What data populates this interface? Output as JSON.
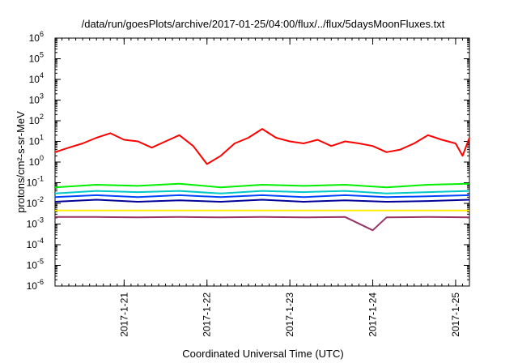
{
  "chart_data": {
    "type": "line",
    "title": "/data/run/goesPlots/archive/2017-01-25/04:00/flux/../flux/5daysMoonFluxes.txt",
    "xlabel": "Coordinated Universal Time (UTC)",
    "ylabel": "protons/cm²-s-sr-MeV",
    "yscale": "log",
    "ylim": [
      1e-06,
      1000000.0
    ],
    "y_tick_labels": [
      {
        "base": "10",
        "exp": "-6",
        "value": 1e-06
      },
      {
        "base": "10",
        "exp": "-5",
        "value": 1e-05
      },
      {
        "base": "10",
        "exp": "-4",
        "value": 0.0001
      },
      {
        "base": "10",
        "exp": "-3",
        "value": 0.001
      },
      {
        "base": "10",
        "exp": "-2",
        "value": 0.01
      },
      {
        "base": "10",
        "exp": "-1",
        "value": 0.1
      },
      {
        "base": "10",
        "exp": "0",
        "value": 1
      },
      {
        "base": "10",
        "exp": "1",
        "value": 10
      },
      {
        "base": "10",
        "exp": "2",
        "value": 100
      },
      {
        "base": "10",
        "exp": "3",
        "value": 1000
      },
      {
        "base": "10",
        "exp": "4",
        "value": 10000
      },
      {
        "base": "10",
        "exp": "5",
        "value": 100000
      },
      {
        "base": "10",
        "exp": "6",
        "value": 1000000
      }
    ],
    "xlim": [
      "2017-01-20T04:00",
      "2017-01-25T04:00"
    ],
    "x_tick_labels": [
      "2017-1-21",
      "2017-1-22",
      "2017-1-23",
      "2017-1-24",
      "2017-1-25"
    ],
    "x_tick_values": [
      "2017-01-21T00:00",
      "2017-01-22T00:00",
      "2017-01-23T00:00",
      "2017-01-24T00:00",
      "2017-01-25T00:00"
    ],
    "grid": false,
    "legend": "none",
    "series": [
      {
        "color": "#ff0000",
        "x": [
          "2017-01-20T04:00",
          "2017-01-20T08:00",
          "2017-01-20T12:00",
          "2017-01-20T16:00",
          "2017-01-20T20:00",
          "2017-01-21T00:00",
          "2017-01-21T04:00",
          "2017-01-21T08:00",
          "2017-01-21T12:00",
          "2017-01-21T16:00",
          "2017-01-21T20:00",
          "2017-01-22T00:00",
          "2017-01-22T04:00",
          "2017-01-22T08:00",
          "2017-01-22T12:00",
          "2017-01-22T16:00",
          "2017-01-22T20:00",
          "2017-01-23T00:00",
          "2017-01-23T04:00",
          "2017-01-23T08:00",
          "2017-01-23T12:00",
          "2017-01-23T16:00",
          "2017-01-23T20:00",
          "2017-01-24T00:00",
          "2017-01-24T04:00",
          "2017-01-24T08:00",
          "2017-01-24T12:00",
          "2017-01-24T16:00",
          "2017-01-24T20:00",
          "2017-01-25T00:00",
          "2017-01-25T02:00",
          "2017-01-25T04:00"
        ],
        "values": [
          3,
          5,
          8,
          15,
          25,
          12,
          10,
          5,
          10,
          20,
          6,
          0.8,
          2,
          8,
          15,
          40,
          15,
          10,
          8,
          12,
          6,
          10,
          8,
          6,
          3,
          4,
          8,
          20,
          12,
          8,
          2,
          15
        ]
      },
      {
        "color": "#00ee00",
        "x": [
          "2017-01-20T04:00",
          "2017-01-20T16:00",
          "2017-01-21T04:00",
          "2017-01-21T16:00",
          "2017-01-22T04:00",
          "2017-01-22T16:00",
          "2017-01-23T04:00",
          "2017-01-23T16:00",
          "2017-01-24T04:00",
          "2017-01-24T16:00",
          "2017-01-25T04:00"
        ],
        "values": [
          0.06,
          0.08,
          0.07,
          0.09,
          0.06,
          0.08,
          0.07,
          0.08,
          0.06,
          0.08,
          0.09
        ]
      },
      {
        "color": "#00c8c8",
        "x": [
          "2017-01-20T04:00",
          "2017-01-20T16:00",
          "2017-01-21T04:00",
          "2017-01-21T16:00",
          "2017-01-22T04:00",
          "2017-01-22T16:00",
          "2017-01-23T04:00",
          "2017-01-23T16:00",
          "2017-01-24T04:00",
          "2017-01-24T16:00",
          "2017-01-25T04:00"
        ],
        "values": [
          0.03,
          0.04,
          0.035,
          0.04,
          0.03,
          0.04,
          0.035,
          0.04,
          0.03,
          0.035,
          0.04
        ]
      },
      {
        "color": "#0044ff",
        "x": [
          "2017-01-20T04:00",
          "2017-01-20T16:00",
          "2017-01-21T04:00",
          "2017-01-21T16:00",
          "2017-01-22T04:00",
          "2017-01-22T16:00",
          "2017-01-23T04:00",
          "2017-01-23T16:00",
          "2017-01-24T04:00",
          "2017-01-24T16:00",
          "2017-01-25T04:00"
        ],
        "values": [
          0.02,
          0.025,
          0.02,
          0.025,
          0.02,
          0.025,
          0.02,
          0.025,
          0.02,
          0.022,
          0.025
        ]
      },
      {
        "color": "#000099",
        "x": [
          "2017-01-20T04:00",
          "2017-01-20T16:00",
          "2017-01-21T04:00",
          "2017-01-21T16:00",
          "2017-01-22T04:00",
          "2017-01-22T16:00",
          "2017-01-23T04:00",
          "2017-01-23T16:00",
          "2017-01-24T04:00",
          "2017-01-24T16:00",
          "2017-01-25T04:00"
        ],
        "values": [
          0.012,
          0.015,
          0.012,
          0.014,
          0.012,
          0.015,
          0.012,
          0.014,
          0.012,
          0.013,
          0.015
        ]
      },
      {
        "color": "#ffee00",
        "x": [
          "2017-01-20T04:00",
          "2017-01-21T04:00",
          "2017-01-22T04:00",
          "2017-01-23T04:00",
          "2017-01-24T04:00",
          "2017-01-25T04:00"
        ],
        "values": [
          0.0045,
          0.0045,
          0.0045,
          0.0045,
          0.0045,
          0.0045
        ]
      },
      {
        "color": "#993366",
        "x": [
          "2017-01-20T04:00",
          "2017-01-20T16:00",
          "2017-01-21T04:00",
          "2017-01-21T16:00",
          "2017-01-22T04:00",
          "2017-01-22T16:00",
          "2017-01-23T04:00",
          "2017-01-23T16:00",
          "2017-01-24T00:00",
          "2017-01-24T04:00",
          "2017-01-24T16:00",
          "2017-01-25T04:00"
        ],
        "values": [
          0.0022,
          0.0022,
          0.0021,
          0.0022,
          0.0021,
          0.0022,
          0.0021,
          0.0022,
          0.0005,
          0.0021,
          0.0022,
          0.0021
        ]
      }
    ]
  }
}
